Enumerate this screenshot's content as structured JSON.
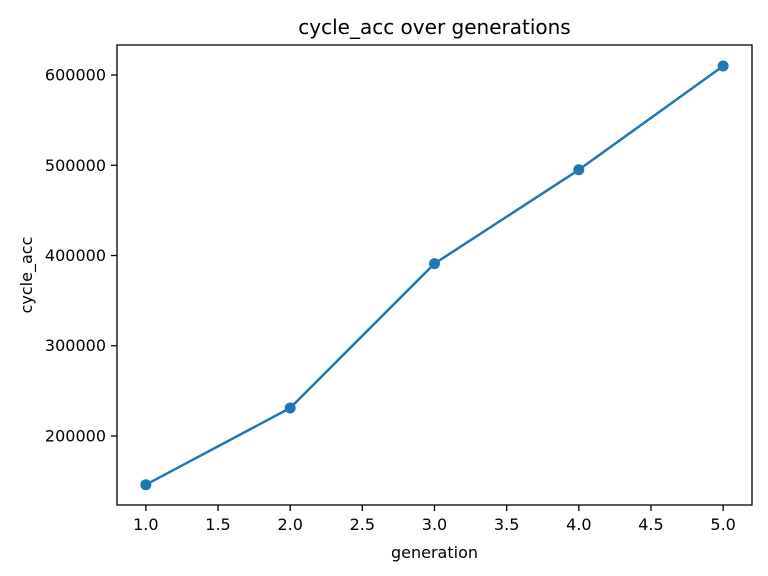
{
  "figure": {
    "background_color": "#ffffff",
    "axes_edge_color": "#000000",
    "tick_color": "#000000",
    "text_color": "#000000"
  },
  "chart_data": {
    "type": "line",
    "title": "cycle_acc over generations",
    "xlabel": "generation",
    "ylabel": "cycle_acc",
    "x": [
      1.0,
      2.0,
      3.0,
      4.0,
      5.0
    ],
    "y": [
      146000,
      231000,
      391000,
      495000,
      610000
    ],
    "series": [
      {
        "name": "cycle_acc",
        "x": [
          1.0,
          2.0,
          3.0,
          4.0,
          5.0
        ],
        "values": [
          146000,
          231000,
          391000,
          495000,
          610000
        ]
      }
    ],
    "line_color": "#1f77b4",
    "marker": "circle",
    "marker_color": "#1f77b4",
    "xlim": [
      0.8,
      5.2
    ],
    "ylim": [
      123500,
      633300
    ],
    "x_ticks": [
      1.0,
      1.5,
      2.0,
      2.5,
      3.0,
      3.5,
      4.0,
      4.5,
      5.0
    ],
    "x_tick_labels": [
      "1.0",
      "1.5",
      "2.0",
      "2.5",
      "3.0",
      "3.5",
      "4.0",
      "4.5",
      "5.0"
    ],
    "y_ticks": [
      200000,
      300000,
      400000,
      500000,
      600000
    ],
    "y_tick_labels": [
      "200000",
      "300000",
      "400000",
      "500000",
      "600000"
    ],
    "grid": false,
    "legend": null
  }
}
